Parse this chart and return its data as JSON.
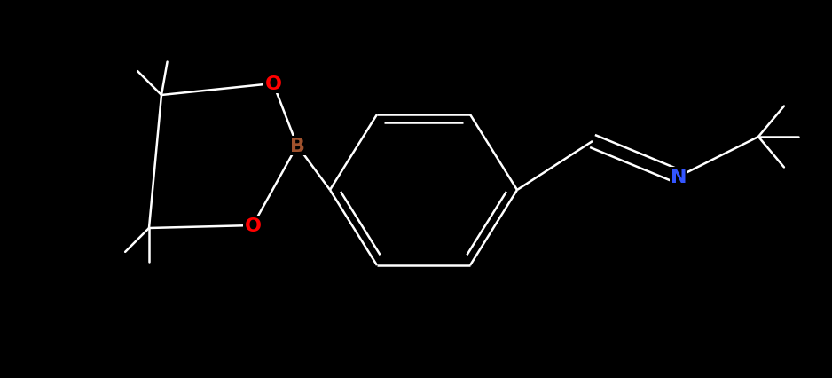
{
  "background_color": "#000000",
  "atom_colors": {
    "C": "#ffffff",
    "B": "#a0522d",
    "O": "#ff0000",
    "N": "#3355ff"
  },
  "bond_color": "#ffffff",
  "bond_width": 1.8,
  "font_size": 16,
  "fig_width": 9.38,
  "fig_height": 4.27,
  "dpi": 100,
  "lw_thick": 1.8,
  "sep_double": 0.042
}
